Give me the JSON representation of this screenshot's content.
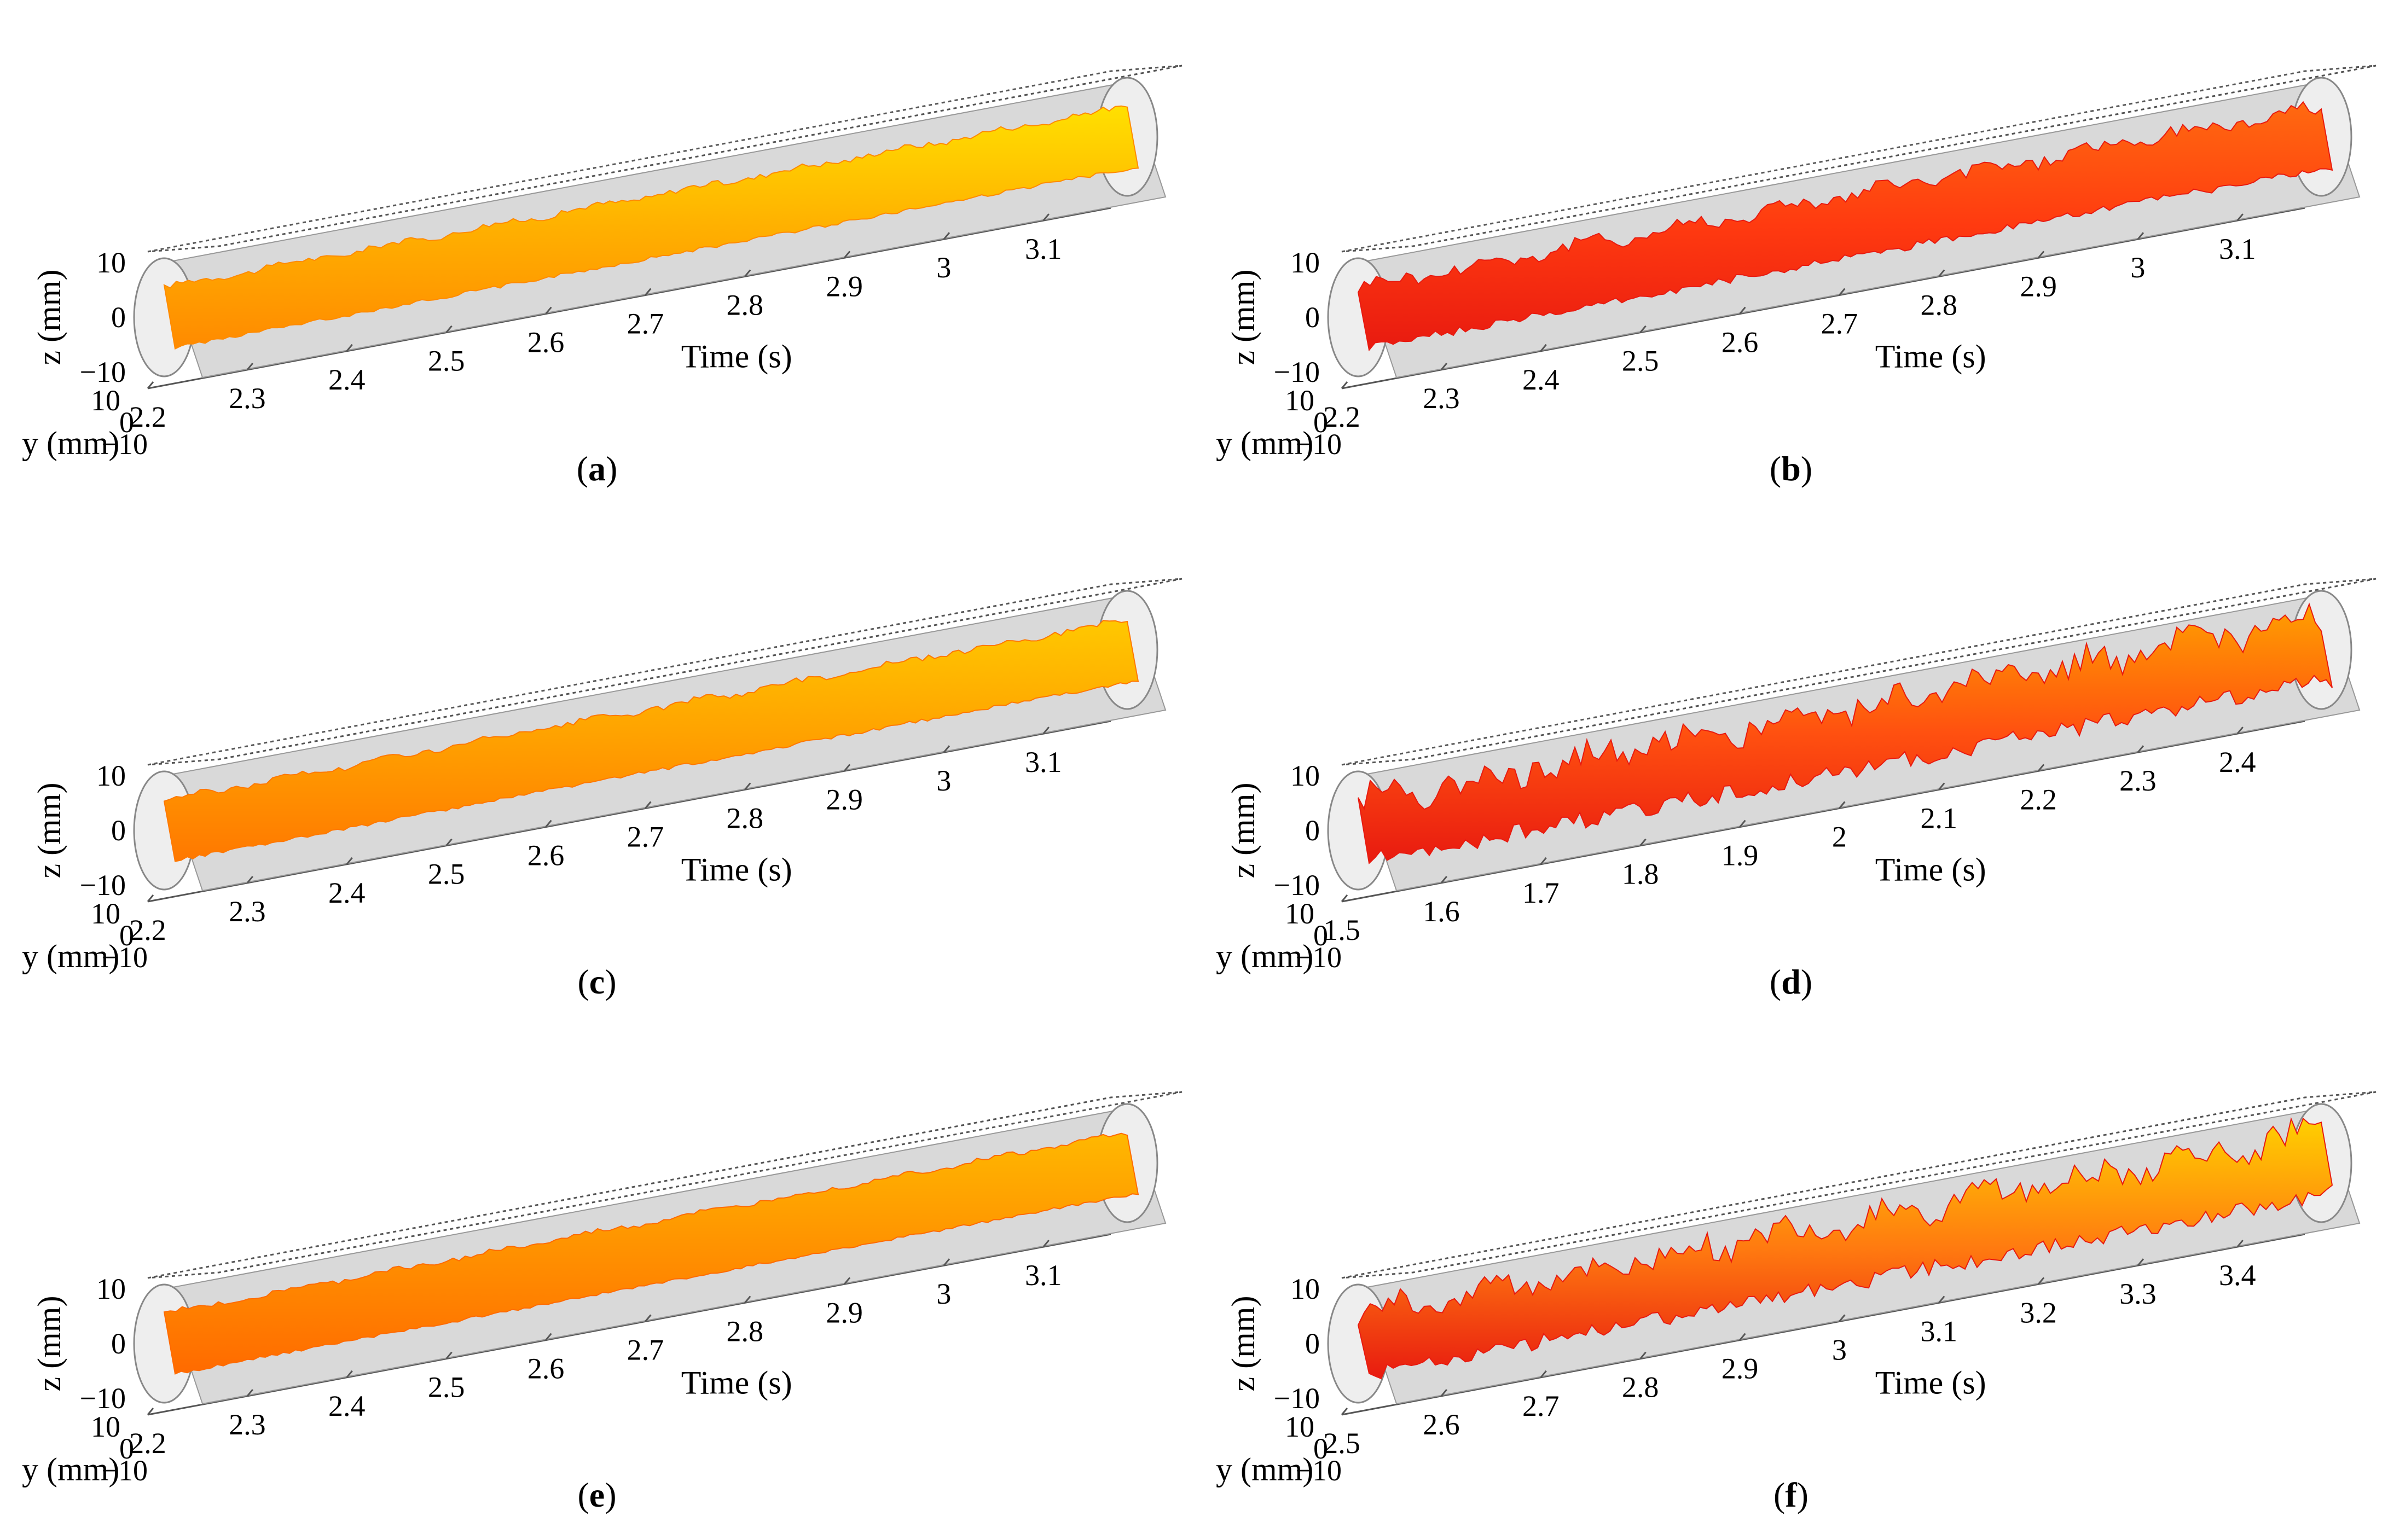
{
  "figure": {
    "title": ""
  },
  "chart_data": [
    {
      "id": "a",
      "caption": "a",
      "type": "surface3d",
      "xlabel": "Time (s)",
      "ylabel": "y (mm)",
      "zlabel": "z (mm)",
      "x_ticks": [
        "2.2",
        "2.3",
        "2.4",
        "2.5",
        "2.6",
        "2.7",
        "2.8",
        "2.9",
        "3",
        "3.1"
      ],
      "y_ticks": [
        "10",
        "0",
        "−10"
      ],
      "z_ticks": [
        "10",
        "0",
        "−10"
      ],
      "xlim": [
        2.2,
        3.15
      ],
      "ylim": [
        -10,
        10
      ],
      "zlim": [
        -10,
        10
      ],
      "colormap": [
        "#ffe000",
        "#ffb000",
        "#ff8a00"
      ],
      "roughness": 0.15
    },
    {
      "id": "b",
      "caption": "b",
      "type": "surface3d",
      "xlabel": "Time (s)",
      "ylabel": "y (mm)",
      "zlabel": "z (mm)",
      "x_ticks": [
        "2.2",
        "2.3",
        "2.4",
        "2.5",
        "2.6",
        "2.7",
        "2.8",
        "2.9",
        "3",
        "3.1"
      ],
      "y_ticks": [
        "10",
        "0",
        "−10"
      ],
      "z_ticks": [
        "10",
        "0",
        "−10"
      ],
      "xlim": [
        2.2,
        3.15
      ],
      "ylim": [
        -10,
        10
      ],
      "zlim": [
        -10,
        10
      ],
      "colormap": [
        "#ff6a10",
        "#ff3a10",
        "#e81a10"
      ],
      "roughness": 0.35
    },
    {
      "id": "c",
      "caption": "c",
      "type": "surface3d",
      "xlabel": "Time (s)",
      "ylabel": "y (mm)",
      "zlabel": "z (mm)",
      "x_ticks": [
        "2.2",
        "2.3",
        "2.4",
        "2.5",
        "2.6",
        "2.7",
        "2.8",
        "2.9",
        "3",
        "3.1"
      ],
      "y_ticks": [
        "10",
        "0",
        "−10"
      ],
      "z_ticks": [
        "10",
        "0",
        "−10"
      ],
      "xlim": [
        2.2,
        3.15
      ],
      "ylim": [
        -10,
        10
      ],
      "zlim": [
        -10,
        10
      ],
      "colormap": [
        "#ffc800",
        "#ffa000",
        "#ff7800"
      ],
      "roughness": 0.15
    },
    {
      "id": "d",
      "caption": "d",
      "type": "surface3d",
      "xlabel": "Time (s)",
      "ylabel": "y (mm)",
      "zlabel": "z (mm)",
      "x_ticks": [
        "1.5",
        "1.6",
        "1.7",
        "1.8",
        "1.9",
        "2",
        "2.1",
        "2.2",
        "2.3",
        "2.4"
      ],
      "y_ticks": [
        "10",
        "0",
        "−10"
      ],
      "z_ticks": [
        "10",
        "0",
        "−10"
      ],
      "xlim": [
        1.5,
        2.45
      ],
      "ylim": [
        -10,
        10
      ],
      "zlim": [
        -10,
        10
      ],
      "colormap": [
        "#ffa000",
        "#ff5010",
        "#e81a10"
      ],
      "roughness": 0.75
    },
    {
      "id": "e",
      "caption": "e",
      "type": "surface3d",
      "xlabel": "Time (s)",
      "ylabel": "y (mm)",
      "zlabel": "z (mm)",
      "x_ticks": [
        "2.2",
        "2.3",
        "2.4",
        "2.5",
        "2.6",
        "2.7",
        "2.8",
        "2.9",
        "3",
        "3.1"
      ],
      "y_ticks": [
        "10",
        "0",
        "−10"
      ],
      "z_ticks": [
        "10",
        "0",
        "−10"
      ],
      "xlim": [
        2.2,
        3.15
      ],
      "ylim": [
        -10,
        10
      ],
      "zlim": [
        -10,
        10
      ],
      "colormap": [
        "#ffb800",
        "#ff9000",
        "#ff6a00"
      ],
      "roughness": 0.12
    },
    {
      "id": "f",
      "caption": "f",
      "type": "surface3d",
      "xlabel": "Time (s)",
      "ylabel": "y (mm)",
      "zlabel": "z (mm)",
      "x_ticks": [
        "2.5",
        "2.6",
        "2.7",
        "2.8",
        "2.9",
        "3",
        "3.1",
        "3.2",
        "3.3",
        "3.4"
      ],
      "y_ticks": [
        "10",
        "0",
        "−10"
      ],
      "z_ticks": [
        "10",
        "0",
        "−10"
      ],
      "xlim": [
        2.5,
        3.45
      ],
      "ylim": [
        -10,
        10
      ],
      "zlim": [
        -10,
        10
      ],
      "colormap": [
        "#ffd000",
        "#ff7a10",
        "#e81a10"
      ],
      "roughness": 0.7
    }
  ]
}
